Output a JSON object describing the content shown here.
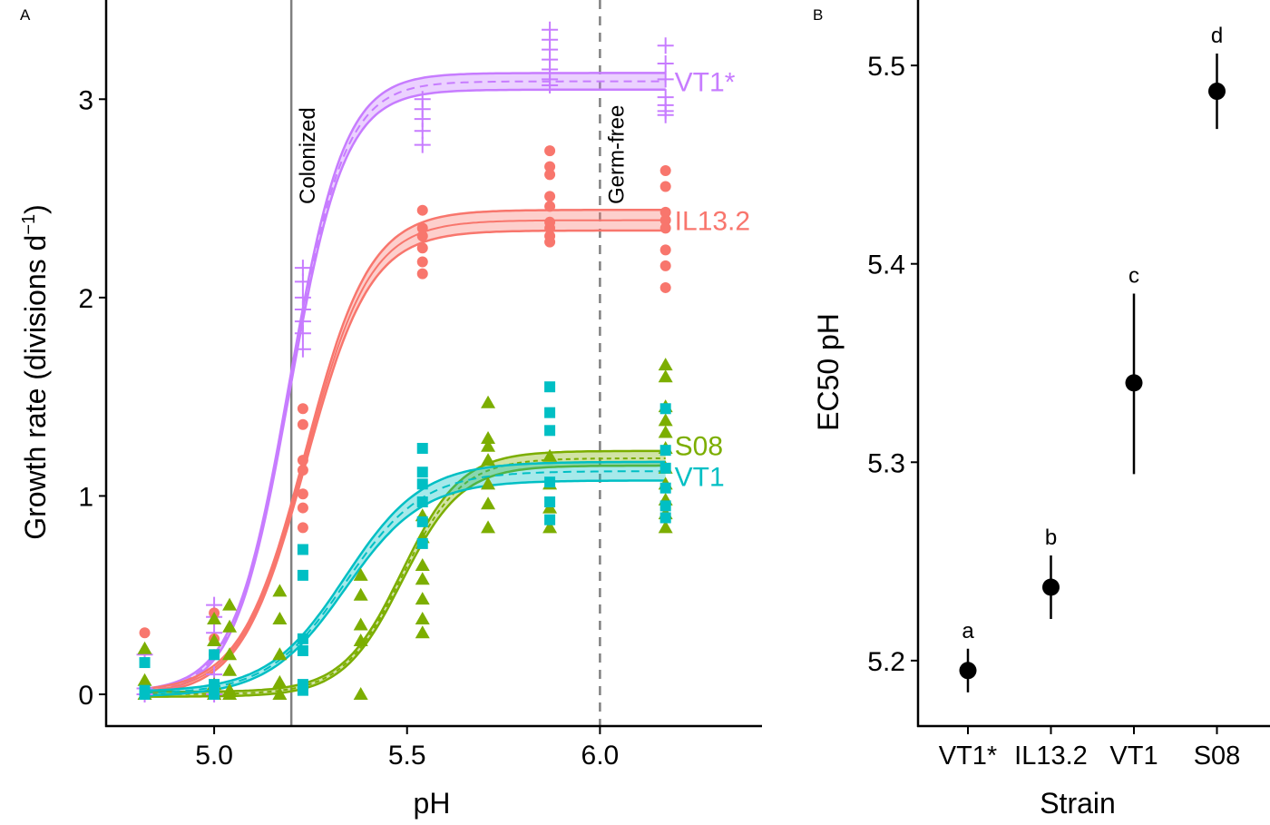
{
  "chart_data": [
    {
      "panel": "A",
      "type": "scatter",
      "xlabel": "pH",
      "ylabel": "Growth rate (divisions d",
      "ylabel_superscript": "−1",
      "ylabel_close": ")",
      "xlim": [
        4.72,
        6.42
      ],
      "ylim": [
        -0.16,
        3.5
      ],
      "xticks": [
        5.0,
        5.5,
        6.0
      ],
      "xtick_labels": [
        "5.0",
        "5.5",
        "6.0"
      ],
      "yticks": [
        0,
        1,
        2,
        3
      ],
      "ytick_labels": [
        "0",
        "1",
        "2",
        "3"
      ],
      "grid": false,
      "reference_lines": [
        {
          "x": 5.2,
          "label": "Colonized",
          "style": "solid",
          "color": "#808080"
        },
        {
          "x": 6.0,
          "label": "Germ-free",
          "style": "dashed",
          "color": "#808080"
        }
      ],
      "series": [
        {
          "name": "VT1*",
          "color": "#C77CFF",
          "marker": "plus",
          "fit": {
            "asymptote": 3.09,
            "ec50": 5.195,
            "slope": 14.0,
            "band": 0.03,
            "line": "dashed"
          },
          "x": [
            4.82,
            4.82,
            4.82,
            5.0,
            5.0,
            5.0,
            5.0,
            5.0,
            5.23,
            5.23,
            5.23,
            5.23,
            5.23,
            5.23,
            5.23,
            5.54,
            5.54,
            5.54,
            5.54,
            5.54,
            5.87,
            5.87,
            5.87,
            5.87,
            5.87,
            5.87,
            5.87,
            6.17,
            6.17,
            6.17,
            6.17,
            6.17,
            6.17,
            6.17
          ],
          "y": [
            0.2,
            0.03,
            0.0,
            0.45,
            0.39,
            0.31,
            0.1,
            0.0,
            2.15,
            2.08,
            2.0,
            1.94,
            1.88,
            1.82,
            1.74,
            3.0,
            2.95,
            2.9,
            2.84,
            2.77,
            3.35,
            3.3,
            3.25,
            3.2,
            3.15,
            3.1,
            3.07,
            3.27,
            3.18,
            3.1,
            3.01,
            2.97,
            2.94,
            2.92
          ]
        },
        {
          "name": "IL13.2",
          "color": "#F8766D",
          "marker": "circle",
          "fit": {
            "asymptote": 2.39,
            "ec50": 5.237,
            "slope": 12.0,
            "band": 0.04,
            "line": "solid"
          },
          "x": [
            4.82,
            5.0,
            5.0,
            5.0,
            5.23,
            5.23,
            5.23,
            5.23,
            5.23,
            5.23,
            5.23,
            5.54,
            5.54,
            5.54,
            5.54,
            5.54,
            5.54,
            5.87,
            5.87,
            5.87,
            5.87,
            5.87,
            5.87,
            5.87,
            5.87,
            5.87,
            6.17,
            6.17,
            6.17,
            6.17,
            6.17,
            6.17,
            6.17,
            6.17
          ],
          "y": [
            0.31,
            0.41,
            0.28,
            0.2,
            1.44,
            1.36,
            1.18,
            1.13,
            1.01,
            0.94,
            0.84,
            2.44,
            2.35,
            2.31,
            2.25,
            2.18,
            2.12,
            2.74,
            2.66,
            2.62,
            2.51,
            2.46,
            2.38,
            2.35,
            2.31,
            2.28,
            2.64,
            2.56,
            2.43,
            2.39,
            2.35,
            2.24,
            2.16,
            2.05
          ]
        },
        {
          "name": "S08",
          "color": "#7CAE00",
          "marker": "triangle",
          "fit": {
            "asymptote": 1.19,
            "ec50": 5.487,
            "slope": 13.0,
            "band": 0.025,
            "line": "dotted"
          },
          "x": [
            4.82,
            4.82,
            4.82,
            5.0,
            5.0,
            5.0,
            5.0,
            5.0,
            5.04,
            5.04,
            5.04,
            5.04,
            5.04,
            5.04,
            5.17,
            5.17,
            5.17,
            5.17,
            5.17,
            5.38,
            5.38,
            5.38,
            5.38,
            5.38,
            5.54,
            5.54,
            5.54,
            5.54,
            5.54,
            5.54,
            5.54,
            5.71,
            5.71,
            5.71,
            5.71,
            5.71,
            5.71,
            5.71,
            5.87,
            5.87,
            5.87,
            5.87,
            6.17,
            6.17,
            6.17,
            6.17,
            6.17,
            6.17,
            6.17,
            6.17,
            6.17,
            6.17,
            6.17
          ],
          "y": [
            0.23,
            0.07,
            0.0,
            0.38,
            0.27,
            0.05,
            0.0,
            0.0,
            0.45,
            0.34,
            0.2,
            0.12,
            0.02,
            0.0,
            0.52,
            0.38,
            0.2,
            0.06,
            0.0,
            0.6,
            0.5,
            0.35,
            0.27,
            0.0,
            0.79,
            0.65,
            0.58,
            0.48,
            0.38,
            0.31,
            0.9,
            1.47,
            1.29,
            1.25,
            1.18,
            1.06,
            0.96,
            0.84,
            1.2,
            1.06,
            0.94,
            0.84,
            1.66,
            1.6,
            1.45,
            1.38,
            1.32,
            1.24,
            1.14,
            1.06,
            0.98,
            0.91,
            0.84
          ]
        },
        {
          "name": "VT1",
          "color": "#00BFC4",
          "marker": "square",
          "fit": {
            "asymptote": 1.125,
            "ec50": 5.34,
            "slope": 10.0,
            "band": 0.035,
            "line": "dashed"
          },
          "x": [
            4.82,
            4.82,
            4.82,
            5.0,
            5.0,
            5.0,
            5.0,
            5.23,
            5.23,
            5.23,
            5.23,
            5.23,
            5.23,
            5.54,
            5.54,
            5.54,
            5.54,
            5.54,
            5.54,
            5.87,
            5.87,
            5.87,
            5.87,
            5.87,
            5.87,
            6.17,
            6.17,
            6.17,
            6.17,
            6.17,
            6.17
          ],
          "y": [
            0.16,
            0.02,
            0.0,
            0.2,
            0.05,
            0.02,
            0.0,
            0.73,
            0.6,
            0.28,
            0.22,
            0.05,
            0.02,
            1.24,
            1.12,
            1.06,
            0.97,
            0.87,
            0.76,
            1.55,
            1.42,
            1.33,
            1.07,
            0.97,
            0.88,
            1.44,
            1.23,
            1.14,
            1.04,
            0.95,
            0.89
          ]
        }
      ]
    },
    {
      "panel": "B",
      "type": "scatter",
      "xlabel": "Strain",
      "ylabel": "EC50 pH",
      "categories": [
        "VT1*",
        "IL13.2",
        "VT1",
        "S08"
      ],
      "values": [
        5.195,
        5.237,
        5.34,
        5.487
      ],
      "ci_low": [
        5.184,
        5.221,
        5.294,
        5.468
      ],
      "ci_high": [
        5.206,
        5.253,
        5.385,
        5.506
      ],
      "group_letters": [
        "a",
        "b",
        "c",
        "d"
      ],
      "ylim": [
        5.167,
        5.533
      ],
      "yticks": [
        5.2,
        5.3,
        5.4,
        5.5
      ],
      "ytick_labels": [
        "5.2",
        "5.3",
        "5.4",
        "5.5"
      ],
      "grid": false
    }
  ]
}
